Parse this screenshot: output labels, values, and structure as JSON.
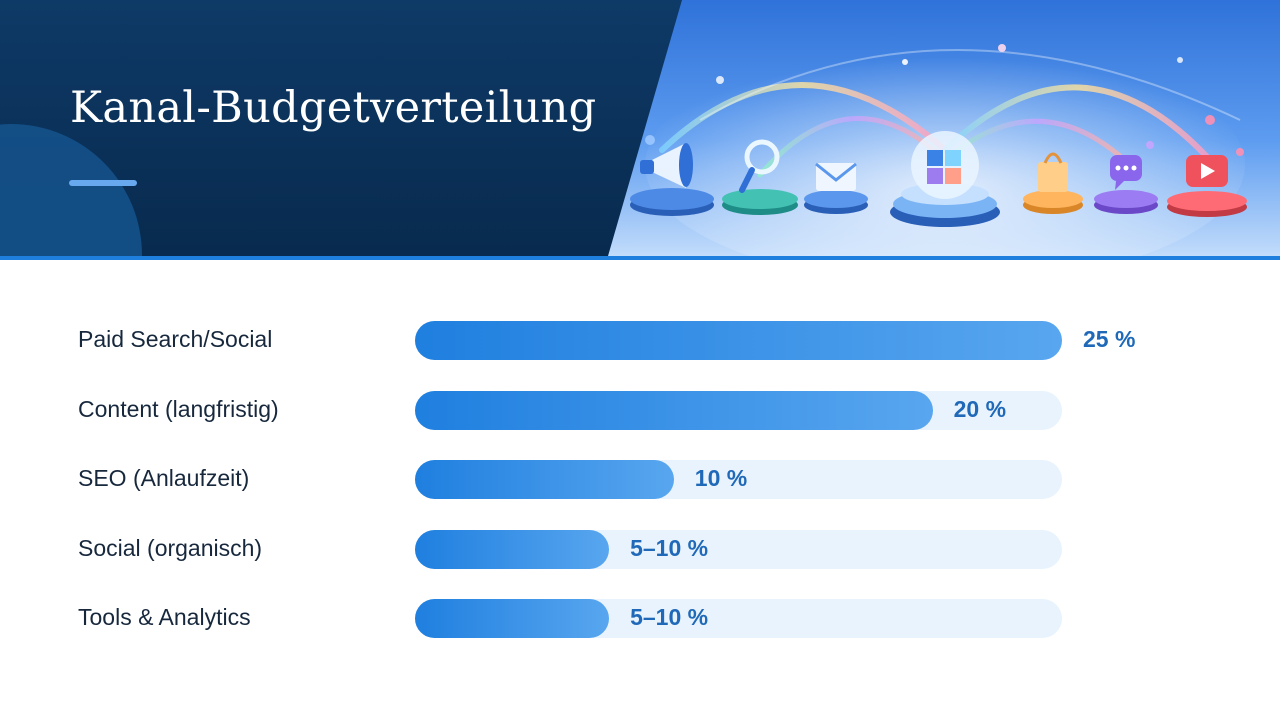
{
  "header": {
    "title": "Kanal-Budgetverteilung",
    "illustration_icons": [
      "megaphone-icon",
      "magnifier-icon",
      "envelope-icon",
      "data-cube-icon",
      "shopping-bag-icon",
      "chat-icon",
      "video-play-icon"
    ]
  },
  "colors": {
    "header_background": "#0b3159",
    "accent": "#1f7fdf",
    "bar_fill": "#2a87e4",
    "track": "#e9f3fd",
    "value_text": "#1f69b8",
    "label_text": "#17283d"
  },
  "chart_data": {
    "type": "bar",
    "orientation": "horizontal",
    "title": "Kanal-Budgetverteilung",
    "unit": "%",
    "xlim": [
      0,
      25
    ],
    "grid": false,
    "categories": [
      "Paid Search/Social",
      "Content (langfristig)",
      "SEO (Anlaufzeit)",
      "Social (organisch)",
      "Tools & Analytics"
    ],
    "values": [
      25,
      20,
      10,
      7.5,
      7.5
    ],
    "data_labels": [
      "25 %",
      "20 %",
      "10 %",
      "5–10 %",
      "5–10 %"
    ]
  }
}
